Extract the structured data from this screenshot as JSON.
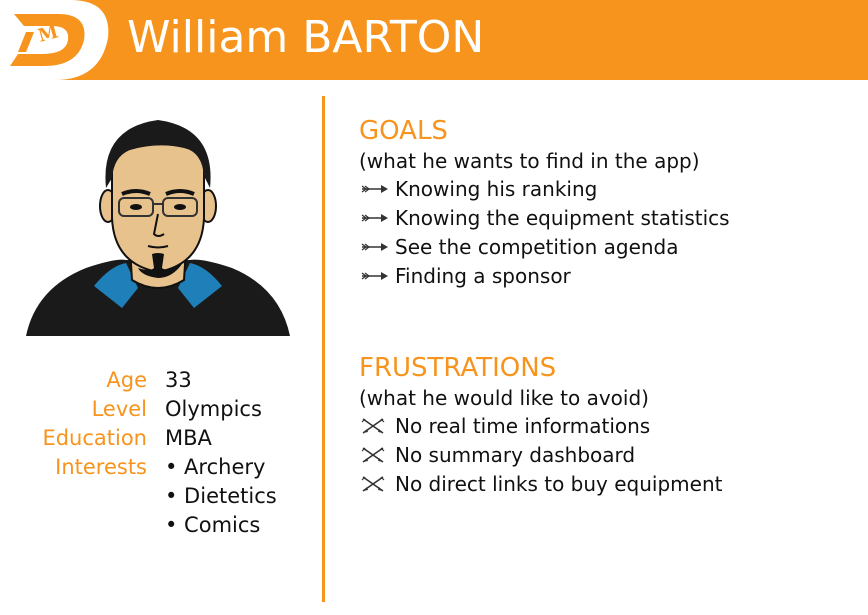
{
  "header": {
    "name": "William BARTON",
    "background_color": "#F7941D"
  },
  "logo": {
    "icon": "dm-logo"
  },
  "avatar": {
    "icon": "persona-avatar"
  },
  "profile": {
    "rows": [
      {
        "label": "Age",
        "values": [
          "33"
        ]
      },
      {
        "label": "Level",
        "values": [
          "Olympics"
        ]
      },
      {
        "label": "Education",
        "values": [
          "MBA"
        ]
      },
      {
        "label": "Interests",
        "values": [
          "• Archery",
          "• Dietetics",
          "• Comics"
        ]
      }
    ]
  },
  "goals": {
    "title": "GOALS",
    "subtitle": "(what he wants to find in the app)",
    "icon": "arrow-icon",
    "items": [
      "Knowing his ranking",
      "Knowing the equipment statistics",
      "See the competition agenda",
      "Finding a sponsor"
    ]
  },
  "frustrations": {
    "title": "FRUSTRATIONS",
    "subtitle": "(what he would like to avoid)",
    "icon": "crossed-arrows-icon",
    "items": [
      "No real time informations",
      "No summary dashboard",
      "No direct links to buy equipment"
    ]
  },
  "accent_color": "#F7941D"
}
